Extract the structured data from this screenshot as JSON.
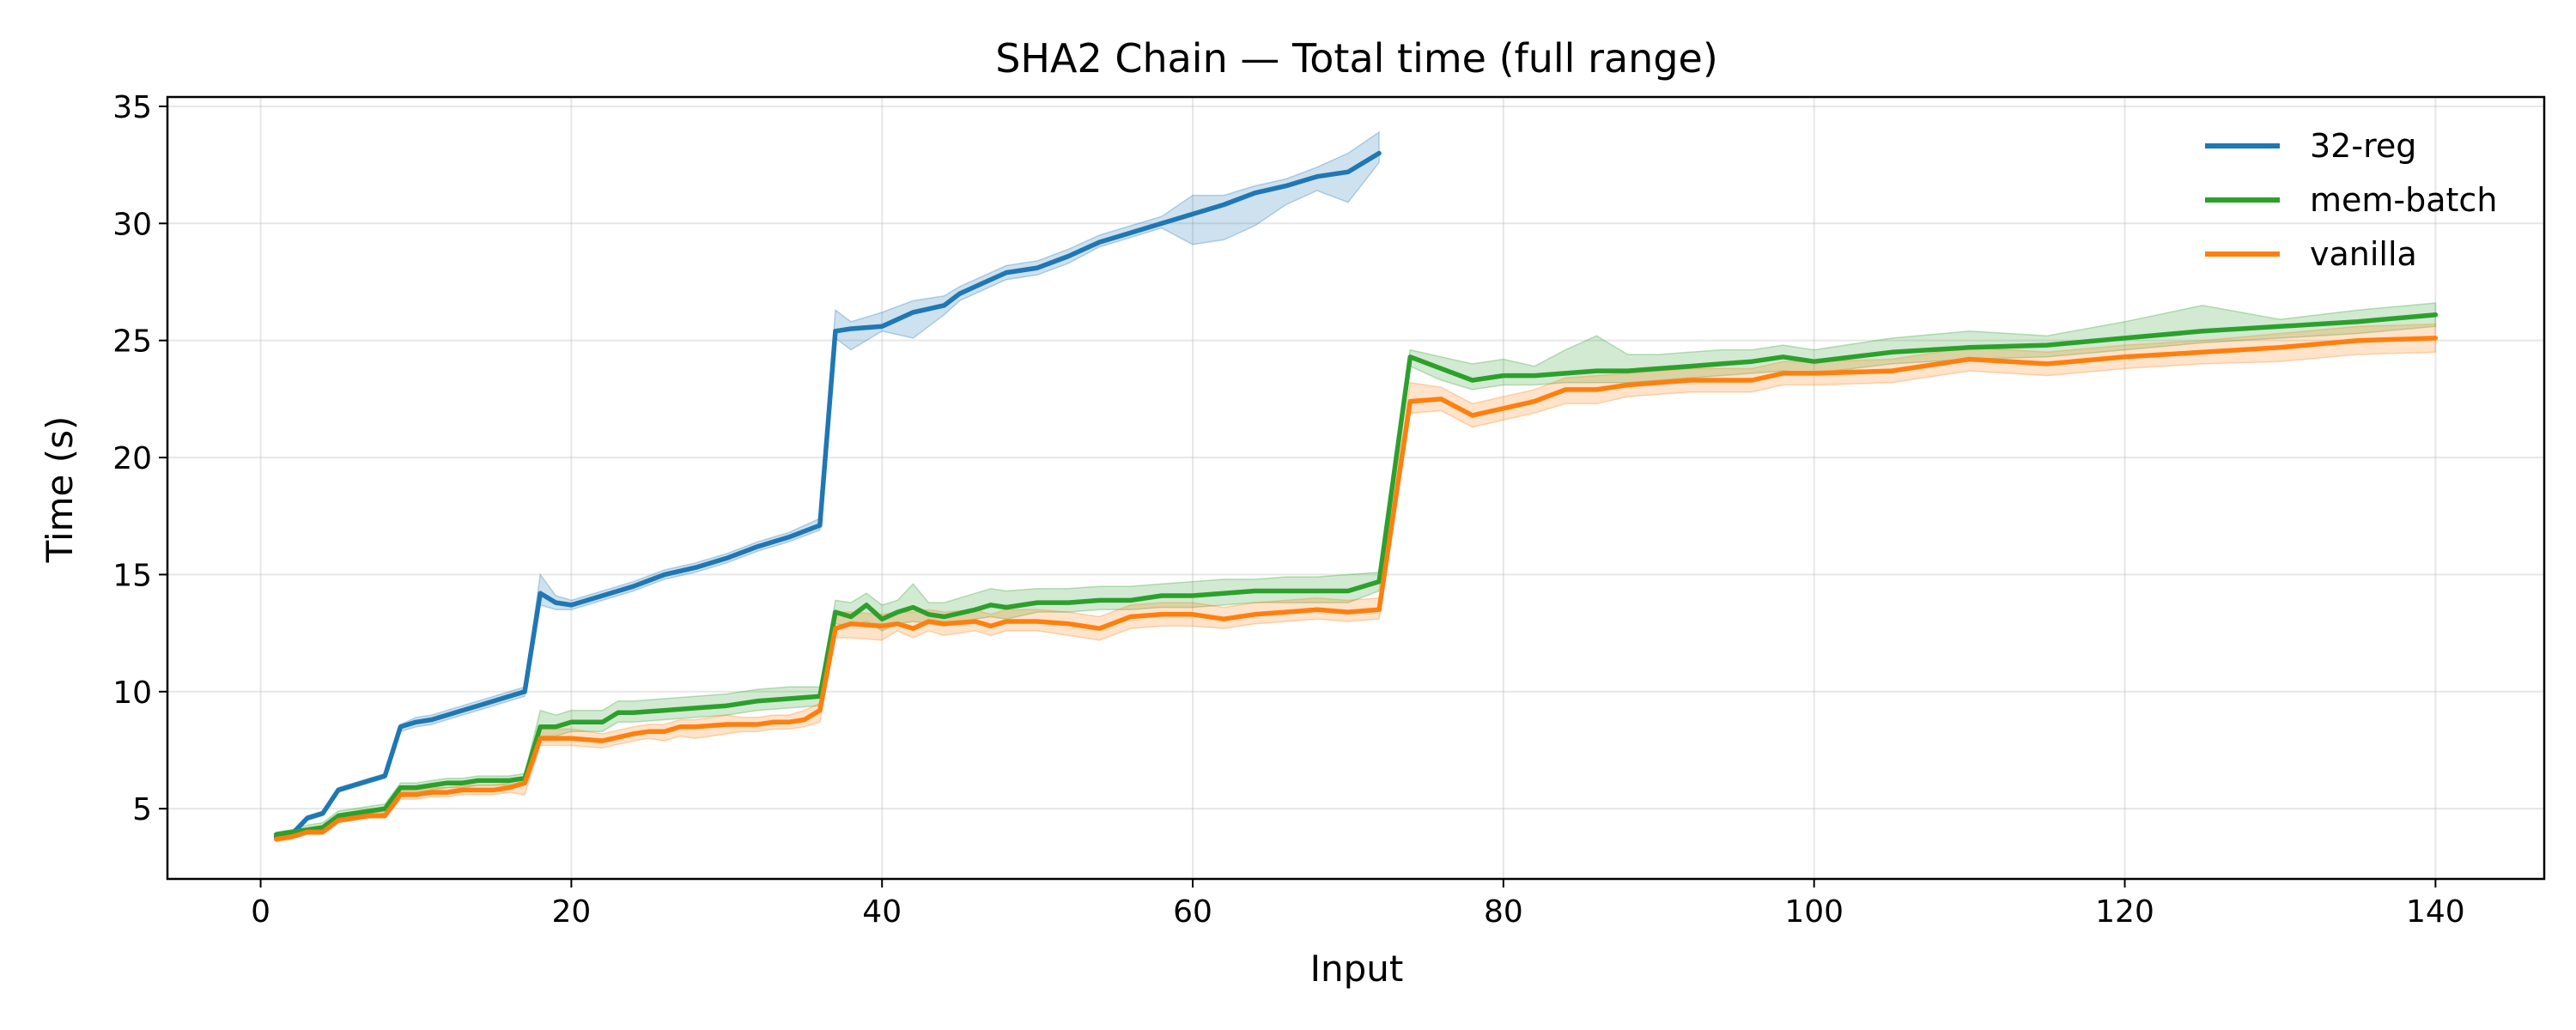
{
  "chart_data": {
    "type": "line",
    "title": "SHA2 Chain — Total time (full range)",
    "xlabel": "Input",
    "ylabel": "Time (s)",
    "xlim": [
      -6,
      147
    ],
    "ylim": [
      2,
      35.4
    ],
    "xticks": [
      0,
      20,
      40,
      60,
      80,
      100,
      120,
      140
    ],
    "yticks": [
      5,
      10,
      15,
      20,
      25,
      30,
      35
    ],
    "grid": true,
    "legend_position": "upper right",
    "series": [
      {
        "name": "32-reg",
        "color": "#1f77b4",
        "x": [
          1,
          2,
          3,
          4,
          5,
          6,
          7,
          8,
          9,
          10,
          11,
          12,
          13,
          14,
          15,
          16,
          17,
          18,
          19,
          20,
          22,
          24,
          26,
          28,
          30,
          32,
          34,
          36,
          37,
          38,
          40,
          42,
          44,
          45,
          46,
          48,
          50,
          52,
          54,
          56,
          58,
          60,
          62,
          64,
          66,
          68,
          70,
          72
        ],
        "y": [
          3.8,
          3.9,
          4.6,
          4.8,
          5.8,
          6.0,
          6.2,
          6.4,
          8.5,
          8.7,
          8.8,
          9.0,
          9.2,
          9.4,
          9.6,
          9.8,
          10.0,
          14.2,
          13.8,
          13.7,
          14.1,
          14.5,
          15.0,
          15.3,
          15.7,
          16.2,
          16.6,
          17.1,
          25.4,
          25.5,
          25.6,
          26.2,
          26.5,
          27.0,
          27.3,
          27.9,
          28.1,
          28.6,
          29.2,
          29.6,
          30.0,
          30.4,
          30.8,
          31.3,
          31.6,
          32.0,
          32.2,
          33.0
        ],
        "lower": [
          3.7,
          3.8,
          4.5,
          4.7,
          5.7,
          5.9,
          6.1,
          6.3,
          8.3,
          8.5,
          8.6,
          8.8,
          9.0,
          9.2,
          9.4,
          9.6,
          9.8,
          13.7,
          13.5,
          13.5,
          13.9,
          14.3,
          14.8,
          15.1,
          15.5,
          16.0,
          16.4,
          16.9,
          25.1,
          24.6,
          25.4,
          25.1,
          26.1,
          26.7,
          27.0,
          27.6,
          27.8,
          28.3,
          29.0,
          29.4,
          29.8,
          29.1,
          29.3,
          29.9,
          30.8,
          31.4,
          30.9,
          32.6
        ],
        "upper": [
          3.9,
          4.0,
          4.7,
          4.9,
          5.9,
          6.1,
          6.3,
          6.5,
          8.6,
          8.9,
          9.0,
          9.2,
          9.4,
          9.6,
          9.8,
          10.0,
          10.2,
          15.0,
          14.1,
          13.9,
          14.3,
          14.7,
          15.2,
          15.5,
          15.9,
          16.4,
          16.8,
          17.4,
          26.3,
          25.8,
          26.2,
          26.7,
          26.9,
          27.3,
          27.6,
          28.2,
          28.4,
          28.9,
          29.5,
          29.9,
          30.3,
          31.2,
          31.2,
          31.6,
          31.9,
          32.4,
          33.0,
          33.9
        ]
      },
      {
        "name": "mem-batch",
        "color": "#2ca02c",
        "x": [
          1,
          2,
          3,
          4,
          5,
          6,
          7,
          8,
          9,
          10,
          11,
          12,
          13,
          14,
          15,
          16,
          17,
          18,
          19,
          20,
          22,
          23,
          24,
          26,
          28,
          30,
          32,
          34,
          36,
          37,
          38,
          39,
          40,
          41,
          42,
          43,
          44,
          46,
          47,
          48,
          50,
          52,
          54,
          56,
          58,
          60,
          62,
          64,
          66,
          68,
          70,
          72,
          74,
          76,
          78,
          80,
          82,
          84,
          86,
          88,
          90,
          92,
          94,
          96,
          98,
          100,
          105,
          110,
          115,
          120,
          125,
          130,
          135,
          140
        ],
        "y": [
          3.9,
          4.0,
          4.1,
          4.2,
          4.7,
          4.8,
          4.9,
          5.0,
          5.9,
          5.9,
          6.0,
          6.1,
          6.1,
          6.2,
          6.2,
          6.2,
          6.3,
          8.5,
          8.5,
          8.7,
          8.7,
          9.1,
          9.1,
          9.2,
          9.3,
          9.4,
          9.6,
          9.7,
          9.8,
          13.4,
          13.2,
          13.7,
          13.1,
          13.4,
          13.6,
          13.3,
          13.2,
          13.5,
          13.7,
          13.6,
          13.8,
          13.8,
          13.9,
          13.9,
          14.1,
          14.1,
          14.2,
          14.3,
          14.3,
          14.3,
          14.3,
          14.7,
          24.3,
          23.8,
          23.3,
          23.5,
          23.5,
          23.6,
          23.7,
          23.7,
          23.8,
          23.9,
          24.0,
          24.1,
          24.3,
          24.1,
          24.5,
          24.7,
          24.8,
          25.1,
          25.4,
          25.6,
          25.8,
          26.1
        ],
        "lower": [
          3.8,
          3.9,
          4.0,
          4.1,
          4.5,
          4.6,
          4.7,
          4.8,
          5.7,
          5.7,
          5.8,
          5.9,
          5.9,
          6.0,
          6.0,
          6.0,
          6.1,
          8.1,
          8.1,
          8.3,
          8.3,
          8.7,
          8.7,
          8.8,
          8.9,
          9.0,
          9.2,
          9.3,
          9.4,
          12.9,
          12.8,
          13.0,
          12.6,
          12.9,
          13.0,
          12.9,
          12.8,
          13.1,
          13.2,
          13.1,
          13.4,
          13.4,
          13.5,
          13.5,
          13.6,
          13.6,
          13.7,
          13.8,
          13.8,
          13.8,
          13.8,
          14.3,
          23.9,
          23.3,
          22.9,
          23.1,
          23.1,
          23.2,
          23.2,
          23.2,
          23.3,
          23.4,
          23.5,
          23.6,
          23.7,
          23.6,
          24.0,
          24.2,
          24.3,
          24.6,
          24.9,
          25.1,
          25.3,
          25.6
        ],
        "upper": [
          4.0,
          4.1,
          4.3,
          4.4,
          4.9,
          5.0,
          5.1,
          5.2,
          6.1,
          6.1,
          6.2,
          6.3,
          6.3,
          6.4,
          6.4,
          6.4,
          6.5,
          9.2,
          9.0,
          9.2,
          9.2,
          9.6,
          9.6,
          9.7,
          9.8,
          9.9,
          10.1,
          10.2,
          10.2,
          13.9,
          13.8,
          14.2,
          13.7,
          13.9,
          14.6,
          13.8,
          13.8,
          14.2,
          14.4,
          14.3,
          14.4,
          14.4,
          14.5,
          14.5,
          14.6,
          14.7,
          14.8,
          14.8,
          14.9,
          14.9,
          15.0,
          15.1,
          24.6,
          24.3,
          24.0,
          24.2,
          23.9,
          24.6,
          25.2,
          24.4,
          24.4,
          24.5,
          24.6,
          24.6,
          24.8,
          24.6,
          25.1,
          25.4,
          25.2,
          25.8,
          26.5,
          25.9,
          26.3,
          26.6
        ]
      },
      {
        "name": "vanilla",
        "color": "#ff7f0e",
        "x": [
          1,
          2,
          3,
          4,
          5,
          6,
          7,
          8,
          9,
          10,
          11,
          12,
          13,
          14,
          15,
          16,
          17,
          18,
          19,
          20,
          22,
          24,
          25,
          26,
          27,
          28,
          30,
          31,
          32,
          33,
          34,
          35,
          36,
          37,
          38,
          40,
          41,
          42,
          43,
          44,
          46,
          47,
          48,
          50,
          52,
          54,
          56,
          58,
          60,
          62,
          64,
          66,
          68,
          70,
          72,
          74,
          76,
          78,
          80,
          82,
          84,
          86,
          88,
          90,
          92,
          94,
          96,
          98,
          100,
          105,
          110,
          115,
          120,
          125,
          130,
          135,
          140
        ],
        "y": [
          3.7,
          3.8,
          4.0,
          4.0,
          4.5,
          4.6,
          4.7,
          4.7,
          5.6,
          5.6,
          5.7,
          5.7,
          5.8,
          5.8,
          5.8,
          5.9,
          6.1,
          8.0,
          8.0,
          8.0,
          7.9,
          8.2,
          8.3,
          8.3,
          8.5,
          8.5,
          8.6,
          8.6,
          8.6,
          8.7,
          8.7,
          8.8,
          9.2,
          12.7,
          12.9,
          12.8,
          12.9,
          12.7,
          13.0,
          12.9,
          13.0,
          12.8,
          13.0,
          13.0,
          12.9,
          12.7,
          13.2,
          13.3,
          13.3,
          13.1,
          13.3,
          13.4,
          13.5,
          13.4,
          13.5,
          22.4,
          22.5,
          21.8,
          22.1,
          22.4,
          22.9,
          22.9,
          23.1,
          23.2,
          23.3,
          23.3,
          23.3,
          23.6,
          23.6,
          23.7,
          24.2,
          24.0,
          24.3,
          24.5,
          24.7,
          25.0,
          25.1
        ],
        "lower": [
          3.6,
          3.7,
          3.9,
          3.9,
          4.4,
          4.5,
          4.6,
          4.6,
          5.4,
          5.4,
          5.5,
          5.5,
          5.6,
          5.6,
          5.6,
          5.7,
          5.6,
          7.7,
          7.7,
          7.7,
          7.6,
          7.9,
          8.0,
          7.9,
          8.1,
          8.0,
          8.2,
          8.3,
          8.3,
          8.4,
          8.4,
          8.5,
          8.7,
          12.3,
          12.3,
          12.2,
          12.6,
          12.3,
          12.6,
          12.4,
          12.6,
          12.4,
          12.6,
          12.6,
          12.4,
          12.2,
          12.7,
          12.8,
          12.8,
          12.7,
          12.9,
          13.0,
          13.1,
          13.0,
          13.1,
          21.9,
          22.0,
          21.3,
          21.6,
          21.9,
          22.3,
          22.3,
          22.6,
          22.7,
          22.8,
          22.8,
          22.8,
          23.1,
          23.1,
          23.2,
          23.7,
          23.5,
          23.8,
          24.0,
          24.1,
          24.4,
          24.5
        ],
        "upper": [
          3.8,
          3.9,
          4.1,
          4.1,
          4.7,
          4.8,
          4.8,
          4.9,
          5.8,
          5.8,
          5.9,
          5.9,
          6.0,
          6.0,
          6.0,
          6.1,
          6.4,
          8.4,
          8.4,
          8.4,
          8.2,
          8.5,
          8.6,
          8.6,
          8.8,
          8.8,
          9.0,
          8.9,
          8.9,
          9.0,
          9.0,
          9.2,
          9.5,
          13.4,
          13.4,
          13.3,
          13.4,
          13.4,
          13.5,
          13.4,
          13.5,
          13.3,
          13.5,
          13.5,
          13.4,
          13.2,
          13.7,
          13.8,
          13.8,
          13.6,
          13.8,
          13.9,
          14.0,
          13.9,
          14.0,
          23.2,
          23.0,
          22.3,
          22.6,
          22.9,
          23.4,
          23.5,
          23.6,
          23.7,
          23.8,
          23.8,
          23.8,
          24.1,
          24.1,
          24.2,
          24.7,
          24.5,
          24.8,
          25.0,
          25.3,
          25.6,
          25.7
        ]
      }
    ]
  }
}
